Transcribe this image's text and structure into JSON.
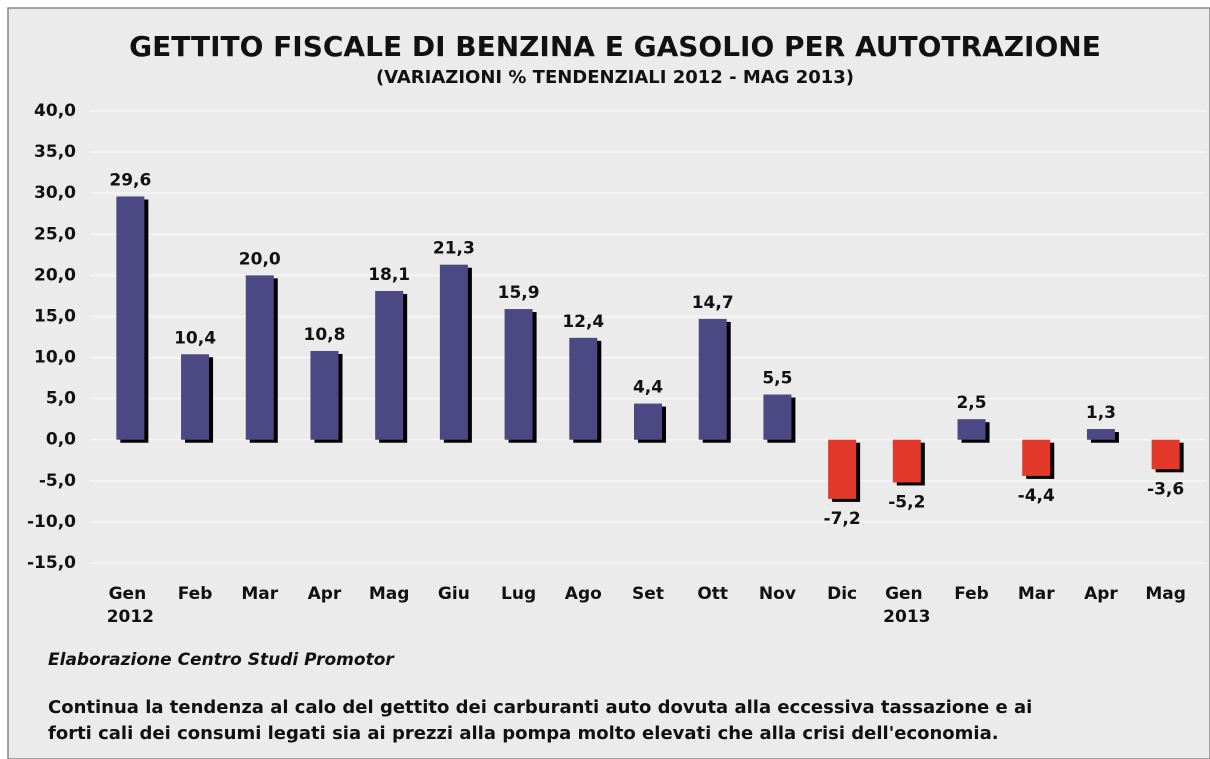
{
  "chart_data": {
    "type": "bar",
    "title": "GETTITO FISCALE DI BENZINA E GASOLIO PER AUTOTRAZIONE",
    "subtitle": "(VARIAZIONI % TENDENZIALI 2012 - MAG 2013)",
    "categories": [
      "Gen 2012",
      "Feb",
      "Mar",
      "Apr",
      "Mag",
      "Giu",
      "Lug",
      "Ago",
      "Set",
      "Ott",
      "Nov",
      "Dic",
      "Gen 2013",
      "Feb",
      "Mar",
      "Apr",
      "Mag"
    ],
    "values": [
      29.6,
      10.4,
      20.0,
      10.8,
      18.1,
      21.3,
      15.9,
      12.4,
      4.4,
      14.7,
      5.5,
      -7.2,
      -5.2,
      2.5,
      -4.4,
      1.3,
      -3.6
    ],
    "value_labels": [
      "29,6",
      "10,4",
      "20,0",
      "10,8",
      "18,1",
      "21,3",
      "15,9",
      "12,4",
      "4,4",
      "14,7",
      "5,5",
      "-7,2",
      "-5,2",
      "2,5",
      "-4,4",
      "1,3",
      "-3,6"
    ],
    "color": "#4c4883",
    "negative_color": "#e2392b",
    "ylim": [
      -15,
      40
    ],
    "yticks": [
      {
        "value": -15,
        "label": "-15,0"
      },
      {
        "value": -10,
        "label": "-10,0"
      },
      {
        "value": -5,
        "label": "-5,0"
      },
      {
        "value": 0,
        "label": "0,0"
      },
      {
        "value": 5,
        "label": "5,0"
      },
      {
        "value": 10,
        "label": "10,0"
      },
      {
        "value": 15,
        "label": "15,0"
      },
      {
        "value": 20,
        "label": "20,0"
      },
      {
        "value": 25,
        "label": "25,0"
      },
      {
        "value": 30,
        "label": "30,0"
      },
      {
        "value": 35,
        "label": "35,0"
      },
      {
        "value": 40,
        "label": "40,0"
      }
    ],
    "grid": true,
    "source": "Elaborazione Centro Studi Promotor",
    "note": [
      "Continua la tendenza al calo del gettito dei carburanti auto dovuta alla eccessiva tassazione e ai",
      "forti cali dei consumi legati sia ai prezzi alla pompa molto elevati che alla crisi dell'economia."
    ]
  }
}
